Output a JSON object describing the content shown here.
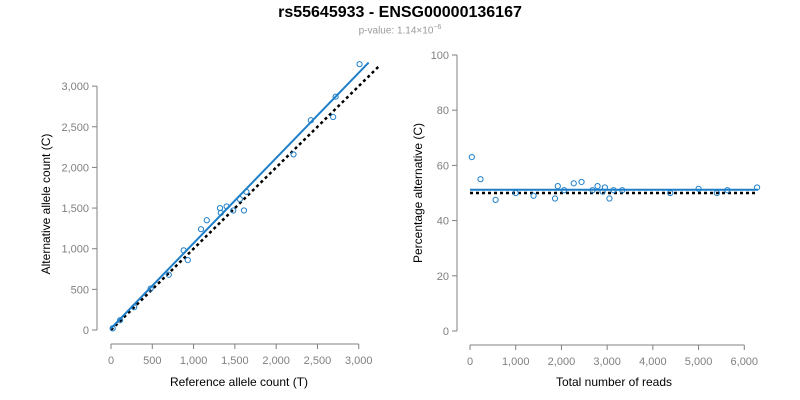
{
  "header": {
    "title": "rs55645933 - ENSG00000136167",
    "pvalue_label": "p-value: 1.14×10",
    "pvalue_exponent": "−6"
  },
  "colors": {
    "points": "#1f7fc9",
    "fit_line": "#1f7fc9",
    "reference_line": "#000000",
    "axis": "#808080"
  },
  "chart_data": [
    {
      "type": "scatter",
      "xlabel": "Reference allele count (T)",
      "ylabel": "Alternative allele count (C)",
      "xlim": [
        0,
        3100
      ],
      "ylim": [
        0,
        3100
      ],
      "xticks": [
        0,
        500,
        1000,
        1500,
        2000,
        2500,
        3000
      ],
      "xtick_labels": [
        "0",
        "500",
        "1,000",
        "1,500",
        "2,000",
        "2,500",
        "3,000"
      ],
      "yticks": [
        0,
        500,
        1000,
        1500,
        2000,
        2500,
        3000
      ],
      "ytick_labels": [
        "0",
        "500",
        "1,000",
        "1,500",
        "2,000",
        "2,500",
        "3,000"
      ],
      "points": [
        {
          "x": 20,
          "y": 20
        },
        {
          "x": 110,
          "y": 120
        },
        {
          "x": 280,
          "y": 280
        },
        {
          "x": 480,
          "y": 510
        },
        {
          "x": 700,
          "y": 680
        },
        {
          "x": 880,
          "y": 980
        },
        {
          "x": 930,
          "y": 860
        },
        {
          "x": 1090,
          "y": 1240
        },
        {
          "x": 1160,
          "y": 1350
        },
        {
          "x": 1320,
          "y": 1500
        },
        {
          "x": 1330,
          "y": 1440
        },
        {
          "x": 1400,
          "y": 1520
        },
        {
          "x": 1480,
          "y": 1470
        },
        {
          "x": 1560,
          "y": 1610
        },
        {
          "x": 1610,
          "y": 1470
        },
        {
          "x": 1640,
          "y": 1700
        },
        {
          "x": 2210,
          "y": 2160
        },
        {
          "x": 2420,
          "y": 2580
        },
        {
          "x": 2690,
          "y": 2620
        },
        {
          "x": 2720,
          "y": 2870
        },
        {
          "x": 3010,
          "y": 3270
        }
      ],
      "fit_line": {
        "x": [
          0,
          3120
        ],
        "y": [
          20,
          3290
        ]
      },
      "reference_line": {
        "x": [
          0,
          3250
        ],
        "y": [
          0,
          3250
        ]
      }
    },
    {
      "type": "scatter",
      "xlabel": "Total number of reads",
      "ylabel": "Percentage alternative (C)",
      "xlim": [
        0,
        6300
      ],
      "ylim": [
        0,
        100
      ],
      "xticks": [
        0,
        1000,
        2000,
        3000,
        4000,
        5000,
        6000
      ],
      "xtick_labels": [
        "0",
        "1,000",
        "2,000",
        "3,000",
        "4,000",
        "5,000",
        "6,000"
      ],
      "yticks": [
        0,
        20,
        40,
        60,
        80,
        100
      ],
      "ytick_labels": [
        "0",
        "20",
        "40",
        "60",
        "80",
        "100"
      ],
      "points": [
        {
          "x": 40,
          "y": 63
        },
        {
          "x": 230,
          "y": 55
        },
        {
          "x": 560,
          "y": 47.5
        },
        {
          "x": 1000,
          "y": 50
        },
        {
          "x": 1390,
          "y": 49
        },
        {
          "x": 1860,
          "y": 48
        },
        {
          "x": 1920,
          "y": 52.5
        },
        {
          "x": 2060,
          "y": 51
        },
        {
          "x": 2270,
          "y": 53.5
        },
        {
          "x": 2440,
          "y": 54
        },
        {
          "x": 2680,
          "y": 51
        },
        {
          "x": 2790,
          "y": 52.5
        },
        {
          "x": 2900,
          "y": 50.5
        },
        {
          "x": 2950,
          "y": 52
        },
        {
          "x": 3050,
          "y": 48
        },
        {
          "x": 3140,
          "y": 51
        },
        {
          "x": 3330,
          "y": 51
        },
        {
          "x": 4380,
          "y": 50
        },
        {
          "x": 5000,
          "y": 51.5
        },
        {
          "x": 5400,
          "y": 50
        },
        {
          "x": 5630,
          "y": 51
        },
        {
          "x": 6280,
          "y": 52
        }
      ],
      "fit_line": {
        "x": [
          0,
          6300
        ],
        "y": [
          51.2,
          51.2
        ]
      },
      "reference_line": {
        "x": [
          0,
          6300
        ],
        "y": [
          50,
          50
        ]
      }
    }
  ]
}
